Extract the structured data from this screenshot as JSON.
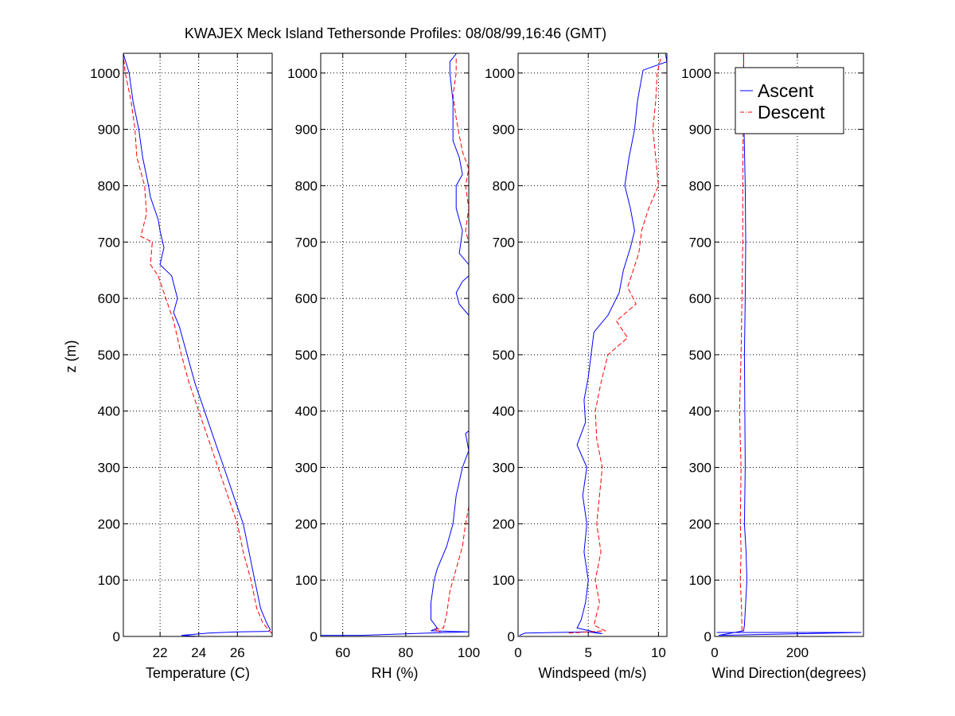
{
  "chart_data": {
    "title": "KWAJEX Meck Island Tethersonde Profiles: 08/08/99,16:46 (GMT)",
    "ylabel": "z (m)",
    "legend": {
      "placement": "top-right of last panel",
      "entries": [
        {
          "name": "Ascent",
          "color": "#0000ff",
          "style": "solid"
        },
        {
          "name": "Descent",
          "color": "#ff0000",
          "style": "dash-dot"
        }
      ]
    },
    "y_axis": {
      "range": [
        0,
        1035
      ],
      "ticks": [
        0,
        100,
        200,
        300,
        400,
        500,
        600,
        700,
        800,
        900,
        1000
      ],
      "tick_labels": [
        "0",
        "100",
        "200",
        "300",
        "400",
        "500",
        "600",
        "700",
        "800",
        "900",
        "1000"
      ]
    },
    "panels": [
      {
        "type": "line",
        "xlabel": "Temperature (C)",
        "xlim": [
          20.1,
          27.8
        ],
        "xticks": [
          22,
          24,
          26
        ],
        "xtick_labels": [
          "22",
          "24",
          "26"
        ],
        "grid": true,
        "series": [
          {
            "name": "Ascent",
            "color": "#0000ff",
            "points": [
              [
                24.0,
                0
              ],
              [
                23.1,
                2
              ],
              [
                24.5,
                6
              ],
              [
                26.0,
                8
              ],
              [
                27.6,
                9
              ],
              [
                27.7,
                12
              ],
              [
                27.5,
                25
              ],
              [
                27.2,
                50
              ],
              [
                26.9,
                100
              ],
              [
                26.6,
                150
              ],
              [
                26.3,
                200
              ],
              [
                25.8,
                250
              ],
              [
                25.3,
                300
              ],
              [
                24.8,
                350
              ],
              [
                24.3,
                400
              ],
              [
                23.8,
                450
              ],
              [
                23.4,
                500
              ],
              [
                23.0,
                550
              ],
              [
                22.7,
                575
              ],
              [
                22.9,
                600
              ],
              [
                22.6,
                640
              ],
              [
                22.0,
                660
              ],
              [
                22.2,
                690
              ],
              [
                22.0,
                720
              ],
              [
                21.9,
                740
              ],
              [
                21.5,
                780
              ],
              [
                21.4,
                800
              ],
              [
                21.1,
                850
              ],
              [
                20.9,
                900
              ],
              [
                20.6,
                950
              ],
              [
                20.4,
                1000
              ],
              [
                20.1,
                1034
              ]
            ]
          },
          {
            "name": "Descent",
            "color": "#ff0000",
            "points": [
              [
                27.8,
                5
              ],
              [
                27.6,
                12
              ],
              [
                27.3,
                25
              ],
              [
                27.0,
                50
              ],
              [
                26.7,
                100
              ],
              [
                26.3,
                150
              ],
              [
                26.0,
                200
              ],
              [
                25.5,
                250
              ],
              [
                25.0,
                300
              ],
              [
                24.5,
                350
              ],
              [
                24.0,
                400
              ],
              [
                23.5,
                450
              ],
              [
                23.1,
                500
              ],
              [
                22.7,
                560
              ],
              [
                22.3,
                600
              ],
              [
                21.9,
                640
              ],
              [
                21.5,
                660
              ],
              [
                21.6,
                700
              ],
              [
                21.0,
                710
              ],
              [
                21.3,
                750
              ],
              [
                21.2,
                800
              ],
              [
                20.8,
                850
              ],
              [
                20.7,
                900
              ],
              [
                20.5,
                950
              ],
              [
                20.2,
                1000
              ],
              [
                20.1,
                1030
              ]
            ]
          }
        ]
      },
      {
        "type": "line",
        "xlabel": "RH (%)",
        "xlim": [
          53,
          100
        ],
        "xticks": [
          60,
          80,
          100
        ],
        "xtick_labels": [
          "60",
          "80",
          "100"
        ],
        "grid": true,
        "series": [
          {
            "name": "Ascent",
            "color": "#0000ff",
            "points": [
              [
                53,
                2
              ],
              [
                66,
                2
              ],
              [
                87,
                6
              ],
              [
                100,
                8
              ],
              [
                88,
                10
              ],
              [
                90,
                15
              ],
              [
                88,
                30
              ],
              [
                88,
                60
              ],
              [
                89,
                100
              ],
              [
                90,
                120
              ],
              [
                93,
                160
              ],
              [
                95,
                200
              ],
              [
                96,
                250
              ],
              [
                98,
                300
              ],
              [
                100,
                330
              ],
              [
                99,
                360
              ],
              [
                100,
                365
              ],
              [
                100,
                570
              ],
              [
                97,
                590
              ],
              [
                96,
                610
              ],
              [
                98,
                630
              ],
              [
                100,
                640
              ],
              [
                100,
                660
              ],
              [
                97,
                680
              ],
              [
                98,
                720
              ],
              [
                96,
                760
              ],
              [
                96,
                800
              ],
              [
                98,
                820
              ],
              [
                97,
                850
              ],
              [
                95,
                880
              ],
              [
                95,
                920
              ],
              [
                95,
                950
              ],
              [
                94,
                1000
              ],
              [
                94,
                1020
              ],
              [
                96,
                1034
              ]
            ]
          },
          {
            "name": "Descent",
            "color": "#ff0000",
            "points": [
              [
                91,
                8
              ],
              [
                89,
                12
              ],
              [
                92,
                15
              ],
              [
                93,
                40
              ],
              [
                94,
                80
              ],
              [
                96,
                120
              ],
              [
                98,
                160
              ],
              [
                99,
                200
              ],
              [
                100,
                230
              ],
              [
                100,
                700
              ],
              [
                99,
                720
              ],
              [
                100,
                760
              ],
              [
                99,
                800
              ],
              [
                100,
                830
              ],
              [
                98,
                860
              ],
              [
                97,
                890
              ],
              [
                96,
                920
              ],
              [
                95,
                960
              ],
              [
                96,
                1000
              ],
              [
                96,
                1030
              ]
            ]
          }
        ]
      },
      {
        "type": "line",
        "xlabel": "Windspeed (m/s)",
        "xlim": [
          0,
          10.6
        ],
        "xticks": [
          0,
          5,
          10
        ],
        "xtick_labels": [
          "0",
          "5",
          "10"
        ],
        "grid": true,
        "series": [
          {
            "name": "Ascent",
            "color": "#0000ff",
            "points": [
              [
                0.1,
                2
              ],
              [
                0.5,
                6
              ],
              [
                5,
                8
              ],
              [
                6,
                5
              ],
              [
                4.2,
                15
              ],
              [
                4.5,
                30
              ],
              [
                4.8,
                60
              ],
              [
                5.0,
                100
              ],
              [
                4.7,
                150
              ],
              [
                4.9,
                200
              ],
              [
                4.6,
                250
              ],
              [
                4.9,
                300
              ],
              [
                4.2,
                340
              ],
              [
                4.8,
                380
              ],
              [
                4.7,
                420
              ],
              [
                5.0,
                460
              ],
              [
                5.2,
                500
              ],
              [
                5.4,
                540
              ],
              [
                6.4,
                570
              ],
              [
                7.2,
                610
              ],
              [
                7.5,
                650
              ],
              [
                8.0,
                690
              ],
              [
                8.3,
                720
              ],
              [
                8.0,
                760
              ],
              [
                7.6,
                800
              ],
              [
                7.9,
                850
              ],
              [
                8.3,
                900
              ],
              [
                8.5,
                950
              ],
              [
                8.9,
                1005
              ],
              [
                10.6,
                1020
              ],
              [
                10.5,
                1034
              ]
            ]
          },
          {
            "name": "Descent",
            "color": "#ff0000",
            "points": [
              [
                3.6,
                6
              ],
              [
                6.2,
                10
              ],
              [
                5.4,
                20
              ],
              [
                5.8,
                60
              ],
              [
                5.5,
                100
              ],
              [
                5.9,
                150
              ],
              [
                5.6,
                200
              ],
              [
                5.8,
                250
              ],
              [
                6.0,
                300
              ],
              [
                5.6,
                350
              ],
              [
                5.5,
                400
              ],
              [
                5.9,
                450
              ],
              [
                6.4,
                500
              ],
              [
                7.8,
                530
              ],
              [
                7.0,
                560
              ],
              [
                8.4,
                590
              ],
              [
                7.8,
                620
              ],
              [
                8.6,
                680
              ],
              [
                8.8,
                720
              ],
              [
                9.3,
                760
              ],
              [
                10.0,
                800
              ],
              [
                9.8,
                850
              ],
              [
                9.6,
                900
              ],
              [
                9.8,
                950
              ],
              [
                9.9,
                1000
              ],
              [
                10.2,
                1030
              ]
            ]
          }
        ]
      },
      {
        "type": "line",
        "xlabel": "Wind Direction(degrees)",
        "xlim": [
          0,
          360
        ],
        "xticks": [
          0,
          200
        ],
        "xtick_labels": [
          "0",
          "200"
        ],
        "grid": true,
        "series": [
          {
            "name": "Ascent",
            "color": "#0000ff",
            "points": [
              [
                5,
                7
              ],
              [
                355,
                7
              ],
              [
                10,
                2
              ],
              [
                70,
                10
              ],
              [
                72,
                20
              ],
              [
                75,
                60
              ],
              [
                78,
                100
              ],
              [
                76,
                150
              ],
              [
                72,
                200
              ],
              [
                74,
                300
              ],
              [
                73,
                400
              ],
              [
                72,
                500
              ],
              [
                74,
                600
              ],
              [
                75,
                700
              ],
              [
                74,
                800
              ],
              [
                71,
                900
              ],
              [
                70,
                1000
              ],
              [
                70,
                1034
              ]
            ]
          },
          {
            "name": "Descent",
            "color": "#ff0000",
            "points": [
              [
                66,
                10
              ],
              [
                65,
                50
              ],
              [
                62,
                100
              ],
              [
                64,
                150
              ],
              [
                62,
                200
              ],
              [
                64,
                300
              ],
              [
                60,
                400
              ],
              [
                64,
                500
              ],
              [
                66,
                600
              ],
              [
                68,
                700
              ],
              [
                68,
                800
              ],
              [
                69,
                900
              ],
              [
                70,
                1000
              ],
              [
                70,
                1034
              ]
            ]
          }
        ]
      }
    ]
  }
}
